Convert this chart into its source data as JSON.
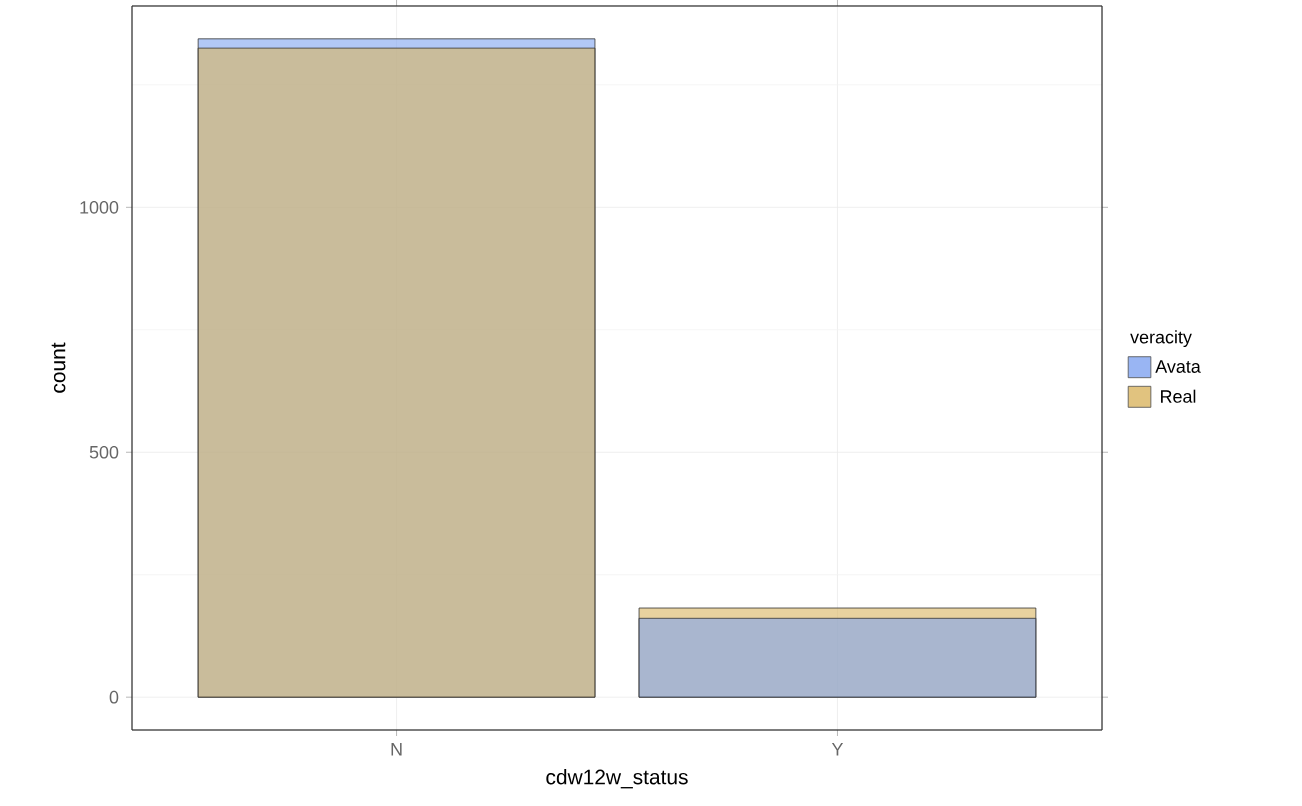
{
  "chart_data": {
    "type": "bar",
    "xlabel": "cdw12w_status",
    "ylabel": "count",
    "legend_title": "veracity",
    "categories": [
      "N",
      "Y"
    ],
    "series": [
      {
        "name": "Avata",
        "color": "#7fa3f0",
        "values": [
          1344,
          161
        ]
      },
      {
        "name": "Real",
        "color": "#d9b45f",
        "values": [
          1325,
          182
        ]
      }
    ],
    "ylim": [
      -67,
      1411
    ],
    "yticks": [
      0,
      500,
      1000
    ],
    "grid": true,
    "legend": "right"
  }
}
